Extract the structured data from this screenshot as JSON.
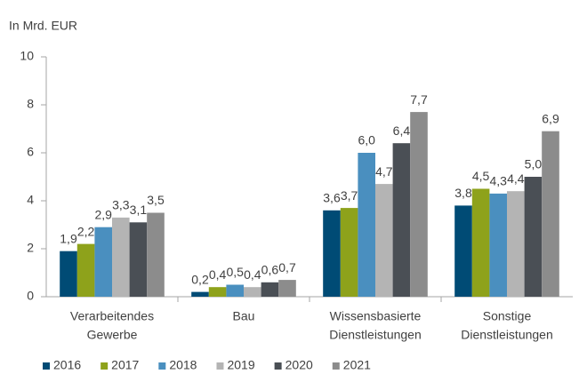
{
  "chart_data": {
    "type": "bar",
    "ylabel": "In Mrd. EUR",
    "categories": [
      [
        "Verarbeitendes",
        "Gewerbe"
      ],
      [
        "Bau"
      ],
      [
        "Wissensbasierte",
        "Dienstleistungen"
      ],
      [
        "Sonstige",
        "Dienstleistungen"
      ]
    ],
    "series": [
      {
        "name": "2016",
        "color": "#004b75",
        "values": [
          1.9,
          0.2,
          3.6,
          3.8
        ],
        "value_labels": [
          "1,9",
          "0,2",
          "3,6",
          "3,8"
        ]
      },
      {
        "name": "2017",
        "color": "#8ea21b",
        "values": [
          2.2,
          0.4,
          3.7,
          4.5
        ],
        "value_labels": [
          "2,2",
          "0,4",
          "3,7",
          "4,5"
        ]
      },
      {
        "name": "2018",
        "color": "#4a8fbf",
        "values": [
          2.9,
          0.5,
          6.0,
          4.3
        ],
        "value_labels": [
          "2,9",
          "0,5",
          "6,0",
          "4,3"
        ]
      },
      {
        "name": "2019",
        "color": "#b4b4b4",
        "values": [
          3.3,
          0.4,
          4.7,
          4.4
        ],
        "value_labels": [
          "3,3",
          "0,4",
          "4,7",
          "4,4"
        ]
      },
      {
        "name": "2020",
        "color": "#4a4f55",
        "values": [
          3.1,
          0.6,
          6.4,
          5.0
        ],
        "value_labels": [
          "3,1",
          "0,6",
          "6,4",
          "5,0"
        ]
      },
      {
        "name": "2021",
        "color": "#8c8c8c",
        "values": [
          3.5,
          0.7,
          7.7,
          6.9
        ],
        "value_labels": [
          "3,5",
          "0,7",
          "7,7",
          "6,9"
        ]
      }
    ],
    "ylim": [
      0,
      10
    ],
    "yticks": [
      0,
      2,
      4,
      6,
      8,
      10
    ],
    "grid": false,
    "legend": "bottom"
  }
}
